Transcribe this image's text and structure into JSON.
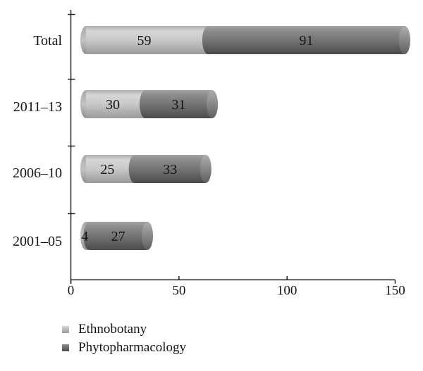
{
  "chart_data": {
    "type": "bar",
    "orientation": "horizontal",
    "stacked": true,
    "style": "3d-cylinder",
    "title": "",
    "xlabel": "",
    "ylabel": "",
    "categories": [
      "Total",
      "2011–13",
      "2006–10",
      "2001–05"
    ],
    "series": [
      {
        "name": "Ethnobotany",
        "color": "#c8c8c8",
        "values": [
          59,
          30,
          25,
          4
        ],
        "gradient": [
          "#aeaeae",
          "#d7d7d7",
          "#c8c8c8",
          "#9a9a9a"
        ],
        "cap_gradient": [
          "#a9a9a9",
          "#c2c2c2",
          "#8f8f8f"
        ]
      },
      {
        "name": "Phytopharmacology",
        "color": "#747474",
        "values": [
          91,
          31,
          33,
          27
        ],
        "gradient": [
          "#a2a2a2",
          "#8f8f8f",
          "#747474",
          "#4b4b4b"
        ],
        "cap_gradient": [
          "#adadad",
          "#8b8b8b",
          "#5e5e5e"
        ]
      }
    ],
    "totals": [
      150,
      61,
      58,
      31
    ],
    "xticks": [
      0,
      50,
      100,
      150
    ],
    "xlim": [
      0,
      150
    ],
    "grid": false,
    "value_labels_shown": true,
    "legend_position": "bottom-left",
    "text_color": "#141414",
    "axis_color": "#262626",
    "background": "#ffffff"
  }
}
